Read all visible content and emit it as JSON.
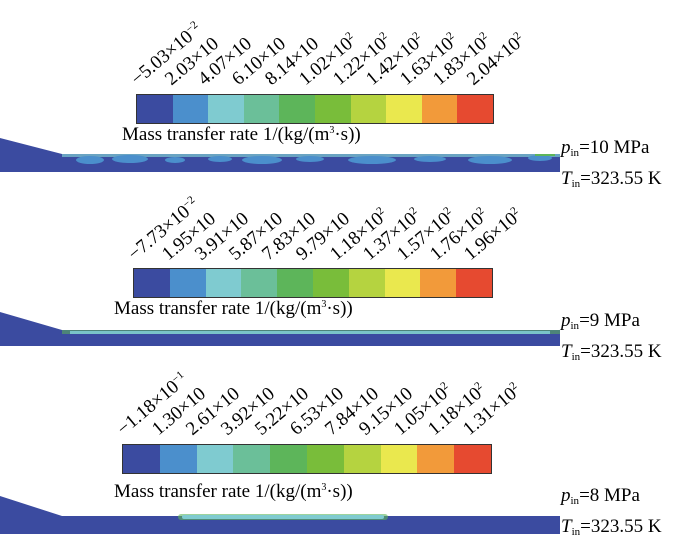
{
  "colors": [
    "#3b4ba0",
    "#4b8fcc",
    "#7fcbd0",
    "#6bbf99",
    "#5db55a",
    "#79bd3a",
    "#b5d340",
    "#eae84e",
    "#f29a3a",
    "#e64a30"
  ],
  "field_colors": {
    "background": "#3b4ba0",
    "blob": "#4b8fcc",
    "band": "#7fcbd0",
    "edge": "#5db55a"
  },
  "legend_label": {
    "base": "Mass transfer rate 1/(kg/(m",
    "exp": "3",
    "rest": "·s))"
  },
  "panels": [
    {
      "ticks": [
        {
          "m": "−5.03×10",
          "e": "−2"
        },
        {
          "m": "2.03×10",
          "e": ""
        },
        {
          "m": "4.07×10",
          "e": ""
        },
        {
          "m": "6.10×10",
          "e": ""
        },
        {
          "m": "8.14×10",
          "e": ""
        },
        {
          "m": "1.02×10",
          "e": "2"
        },
        {
          "m": "1.22×10",
          "e": "2"
        },
        {
          "m": "1.42×10",
          "e": "2"
        },
        {
          "m": "1.63×10",
          "e": "2"
        },
        {
          "m": "1.83×10",
          "e": "2"
        },
        {
          "m": "2.04×10",
          "e": "2"
        }
      ],
      "pressure": "=10 MPa",
      "temperature": "=323.55 K"
    },
    {
      "ticks": [
        {
          "m": "−7.73×10",
          "e": "−2"
        },
        {
          "m": "1.95×10",
          "e": ""
        },
        {
          "m": "3.91×10",
          "e": ""
        },
        {
          "m": "5.87×10",
          "e": ""
        },
        {
          "m": "7.83×10",
          "e": ""
        },
        {
          "m": "9.79×10",
          "e": ""
        },
        {
          "m": "1.18×10",
          "e": "2"
        },
        {
          "m": "1.37×10",
          "e": "2"
        },
        {
          "m": "1.57×10",
          "e": "2"
        },
        {
          "m": "1.76×10",
          "e": "2"
        },
        {
          "m": "1.96×10",
          "e": "2"
        }
      ],
      "pressure": "=9 MPa",
      "temperature": "=323.55 K"
    },
    {
      "ticks": [
        {
          "m": "−1.18×10",
          "e": "−1"
        },
        {
          "m": "1.30×10",
          "e": ""
        },
        {
          "m": "2.61×10",
          "e": ""
        },
        {
          "m": "3.92×10",
          "e": ""
        },
        {
          "m": "5.22×10",
          "e": ""
        },
        {
          "m": "6.53×10",
          "e": ""
        },
        {
          "m": "7.84×10",
          "e": ""
        },
        {
          "m": "9.15×10",
          "e": ""
        },
        {
          "m": "1.05×10",
          "e": "2"
        },
        {
          "m": "1.18×10",
          "e": "2"
        },
        {
          "m": "1.31×10",
          "e": "2"
        }
      ],
      "pressure": "=8 MPa",
      "temperature": "=323.55 K"
    }
  ],
  "cond_labels": {
    "p": "p",
    "p_sub": "in",
    "t": "T",
    "t_sub": "in"
  }
}
